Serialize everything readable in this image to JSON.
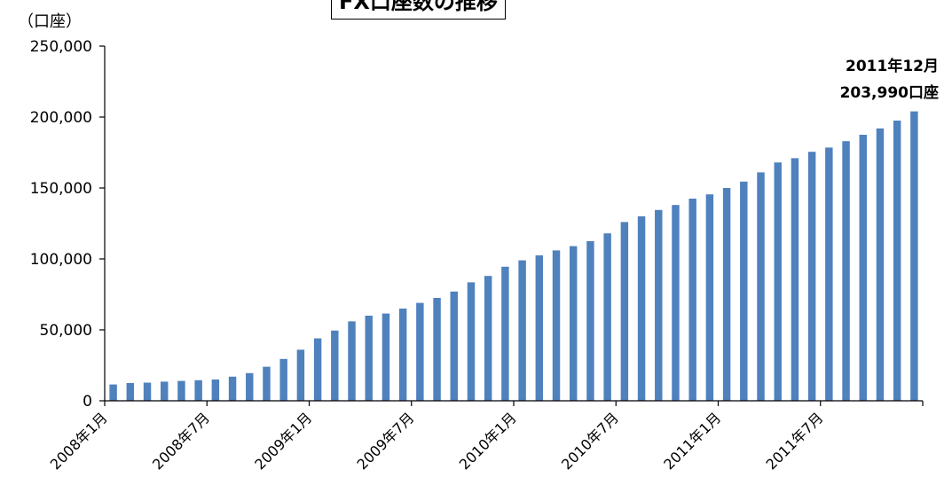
{
  "chart_data": {
    "type": "bar",
    "title": "FX口座数の推移",
    "ylabel": "（口座）",
    "xlabel": "",
    "ylim": [
      0,
      250000
    ],
    "yticks": [
      "0",
      "50,000",
      "100,000",
      "150,000",
      "200,000",
      "250,000"
    ],
    "ytick_values": [
      0,
      50000,
      100000,
      150000,
      200000,
      250000
    ],
    "grid": false,
    "bar_color": "#4f81bd",
    "xtick_labels": [
      "2008年1月",
      "2008年7月",
      "2009年1月",
      "2009年7月",
      "2010年1月",
      "2010年7月",
      "2011年1月",
      "2011年7月"
    ],
    "xtick_indices": [
      0,
      6,
      12,
      18,
      24,
      30,
      36,
      42
    ],
    "categories": [
      "2008年1月",
      "2008年2月",
      "2008年3月",
      "2008年4月",
      "2008年5月",
      "2008年6月",
      "2008年7月",
      "2008年8月",
      "2008年9月",
      "2008年10月",
      "2008年11月",
      "2008年12月",
      "2009年1月",
      "2009年2月",
      "2009年3月",
      "2009年4月",
      "2009年5月",
      "2009年6月",
      "2009年7月",
      "2009年8月",
      "2009年9月",
      "2009年10月",
      "2009年11月",
      "2009年12月",
      "2010年1月",
      "2010年2月",
      "2010年3月",
      "2010年4月",
      "2010年5月",
      "2010年6月",
      "2010年7月",
      "2010年8月",
      "2010年9月",
      "2010年10月",
      "2010年11月",
      "2010年12月",
      "2011年1月",
      "2011年2月",
      "2011年3月",
      "2011年4月",
      "2011年5月",
      "2011年6月",
      "2011年7月",
      "2011年8月",
      "2011年9月",
      "2011年10月",
      "2011年11月",
      "2011年12月"
    ],
    "values": [
      11500,
      12500,
      12800,
      13500,
      14000,
      14500,
      15000,
      17000,
      19500,
      24000,
      29500,
      36000,
      44000,
      49500,
      56000,
      60000,
      61500,
      65000,
      69000,
      72500,
      77000,
      83500,
      88000,
      94500,
      99000,
      102500,
      106000,
      109000,
      112500,
      118000,
      126000,
      130000,
      134500,
      138000,
      142500,
      145500,
      150000,
      154500,
      161000,
      168000,
      171000,
      175500,
      178500,
      183000,
      187500,
      192000,
      197500,
      203990
    ],
    "annotation": [
      "2011年12月",
      "203,990口座"
    ]
  }
}
